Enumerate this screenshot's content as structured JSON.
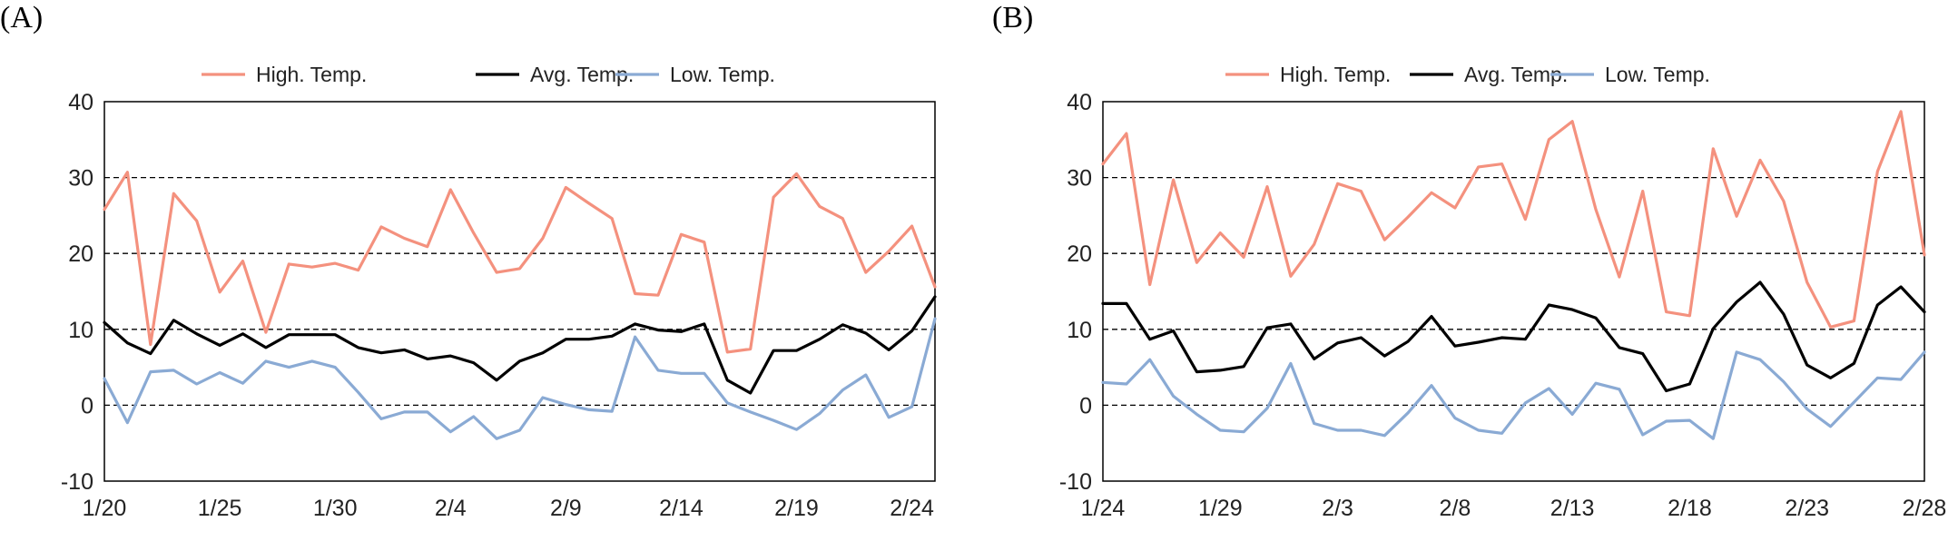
{
  "chart_data": [
    {
      "type": "line",
      "panel_label": "(A)",
      "legend": "top-center",
      "grid": "horizontal-dashed",
      "ylim": [
        -10,
        40
      ],
      "yticks": [
        "40",
        "30",
        "20",
        "10",
        "0",
        "-10"
      ],
      "x_tick_labels": [
        "1/20",
        "1/25",
        "1/30",
        "2/4",
        "2/9",
        "2/14",
        "2/19",
        "2/24"
      ],
      "x_tick_every": 5,
      "series": [
        {
          "name": "High. Temp.",
          "color": "#f4917e",
          "values": [
            25.8,
            30.7,
            8.0,
            27.9,
            24.3,
            14.9,
            19.0,
            9.6,
            18.6,
            18.2,
            18.7,
            17.8,
            23.5,
            22.0,
            20.9,
            28.4,
            22.7,
            17.5,
            18.0,
            22.0,
            28.7,
            26.6,
            24.6,
            14.7,
            14.5,
            22.5,
            21.5,
            7.0,
            7.4,
            27.4,
            30.5,
            26.2,
            24.6,
            17.5,
            20.3,
            23.6,
            15.6
          ]
        },
        {
          "name": "Avg. Temp.",
          "color": "#000000",
          "values": [
            10.9,
            8.2,
            6.8,
            11.2,
            9.4,
            7.9,
            9.4,
            7.6,
            9.3,
            9.3,
            9.3,
            7.6,
            6.9,
            7.3,
            6.1,
            6.5,
            5.6,
            3.3,
            5.8,
            6.9,
            8.7,
            8.7,
            9.1,
            10.7,
            9.9,
            9.7,
            10.7,
            3.3,
            1.6,
            7.2,
            7.2,
            8.7,
            10.6,
            9.5,
            7.3,
            9.8,
            14.3
          ]
        },
        {
          "name": "Low. Temp.",
          "color": "#8aaad4",
          "values": [
            3.5,
            -2.3,
            4.4,
            4.6,
            2.8,
            4.3,
            2.9,
            5.8,
            5.0,
            5.8,
            5.0,
            1.7,
            -1.8,
            -0.9,
            -0.9,
            -3.5,
            -1.5,
            -4.4,
            -3.3,
            1.0,
            0.1,
            -0.6,
            -0.8,
            9.0,
            4.6,
            4.2,
            4.2,
            0.3,
            -0.9,
            -2.0,
            -3.2,
            -1.1,
            2.0,
            4.0,
            -1.6,
            -0.2,
            11.4
          ]
        }
      ]
    },
    {
      "type": "line",
      "panel_label": "(B)",
      "legend": "top-center",
      "grid": "horizontal-dashed",
      "ylim": [
        -10,
        40
      ],
      "yticks": [
        "40",
        "30",
        "20",
        "10",
        "0",
        "-10"
      ],
      "x_tick_labels": [
        "1/24",
        "1/29",
        "2/3",
        "2/8",
        "2/13",
        "2/18",
        "2/23",
        "2/28"
      ],
      "x_tick_every": 5,
      "series": [
        {
          "name": "High. Temp.",
          "color": "#f4917e",
          "values": [
            31.8,
            35.8,
            15.9,
            29.7,
            18.8,
            22.7,
            19.5,
            28.8,
            17.0,
            21.2,
            29.2,
            28.2,
            21.8,
            24.8,
            28.0,
            26.0,
            31.4,
            31.8,
            24.5,
            35.0,
            37.4,
            25.8,
            16.9,
            28.2,
            12.3,
            11.8,
            33.8,
            24.9,
            32.3,
            26.9,
            16.2,
            10.3,
            11.1,
            30.8,
            38.7,
            19.8
          ]
        },
        {
          "name": "Avg. Temp.",
          "color": "#000000",
          "values": [
            13.4,
            13.4,
            8.7,
            9.8,
            4.4,
            4.6,
            5.1,
            10.2,
            10.7,
            6.1,
            8.2,
            8.9,
            6.5,
            8.4,
            11.7,
            7.8,
            8.3,
            8.9,
            8.7,
            13.2,
            12.6,
            11.5,
            7.6,
            6.8,
            1.9,
            2.8,
            10.1,
            13.6,
            16.2,
            12.0,
            5.3,
            3.6,
            5.5,
            13.2,
            15.6,
            12.3
          ]
        },
        {
          "name": "Low. Temp.",
          "color": "#8aaad4",
          "values": [
            3.0,
            2.8,
            6.0,
            1.2,
            -1.2,
            -3.3,
            -3.5,
            -0.4,
            5.5,
            -2.4,
            -3.3,
            -3.3,
            -4.0,
            -1.0,
            2.6,
            -1.7,
            -3.3,
            -3.7,
            0.3,
            2.2,
            -1.2,
            2.9,
            2.1,
            -3.9,
            -2.1,
            -2.0,
            -4.4,
            7.0,
            6.0,
            3.1,
            -0.5,
            -2.8,
            0.4,
            3.6,
            3.4,
            7.0
          ]
        }
      ]
    }
  ]
}
